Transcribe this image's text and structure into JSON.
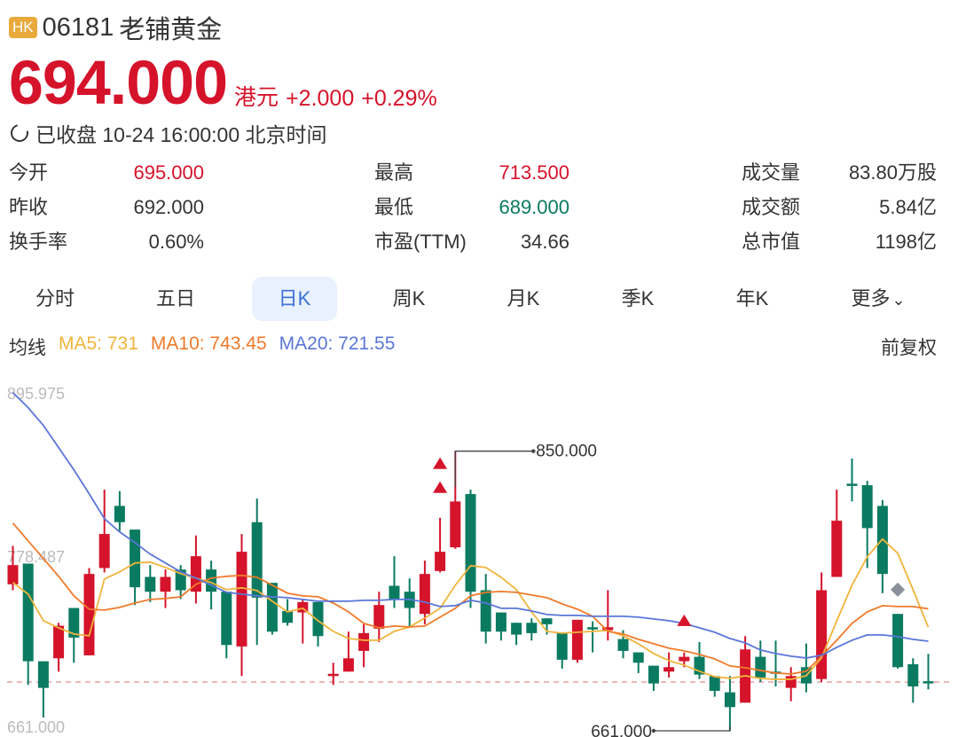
{
  "header": {
    "market_badge": "HK",
    "code": "06181",
    "name": "老铺黄金",
    "price": "694.000",
    "currency": "港元",
    "change": "+2.000",
    "change_pct": "+0.29%",
    "status": "已收盘 10-24 16:00:00 北京时间"
  },
  "stats": [
    {
      "label": "今开",
      "value": "695.000",
      "tone": "up"
    },
    {
      "label": "昨收",
      "value": "692.000",
      "tone": "neutral"
    },
    {
      "label": "换手率",
      "value": "0.60%",
      "tone": "neutral"
    },
    {
      "label": "最高",
      "value": "713.500",
      "tone": "up"
    },
    {
      "label": "最低",
      "value": "689.000",
      "tone": "down"
    },
    {
      "label": "市盈(TTM)",
      "value": "34.66",
      "tone": "neutral"
    },
    {
      "label": "成交量",
      "value": "83.80万股",
      "tone": "neutral"
    },
    {
      "label": "成交额",
      "value": "5.84亿",
      "tone": "neutral"
    },
    {
      "label": "总市值",
      "value": "1198亿",
      "tone": "neutral"
    }
  ],
  "tabs": [
    {
      "label": "分时"
    },
    {
      "label": "五日"
    },
    {
      "label": "日K",
      "active": true
    },
    {
      "label": "周K"
    },
    {
      "label": "月K"
    },
    {
      "label": "季K"
    },
    {
      "label": "年K"
    },
    {
      "label": "更多"
    }
  ],
  "ma": {
    "label": "均线",
    "ma5": "MA5: 731",
    "ma10": "MA10: 743.45",
    "ma20": "MA20: 721.55",
    "adjust": "前复权"
  },
  "colors": {
    "up": "#d5132b",
    "down": "#0a7b61",
    "ma5": "#f0b43c",
    "ma10": "#f07a2a",
    "ma20": "#5b76d9",
    "ref_line": "#e8a0a0",
    "marker_diamond": "#8a8f9a"
  },
  "chart_data": {
    "type": "candlestick",
    "ylim": [
      661.0,
      895.975
    ],
    "y_tick_labels": [
      "895.975",
      "778.487",
      "661.000"
    ],
    "reference_price": 694.0,
    "annotations": [
      {
        "candle": 30,
        "price": 850.0,
        "label": "850.000"
      },
      {
        "candle": 48,
        "price": 661.0,
        "label": "661.000"
      }
    ],
    "markers": [
      {
        "candle": 29,
        "price": 841.6,
        "shape": "triangle-up"
      },
      {
        "candle": 29,
        "price": 825.4,
        "shape": "triangle-up"
      },
      {
        "candle": 45,
        "price": 735.4,
        "shape": "triangle-up"
      },
      {
        "candle": 59,
        "price": 756.4,
        "shape": "diamond"
      }
    ],
    "candles": [
      [
        760,
        786,
        756,
        773
      ],
      [
        774,
        774,
        692,
        708
      ],
      [
        708,
        708,
        670,
        690
      ],
      [
        710,
        734,
        701,
        732
      ],
      [
        744,
        744,
        707,
        724
      ],
      [
        712,
        771,
        712,
        767
      ],
      [
        771,
        824,
        768,
        794
      ],
      [
        813,
        823,
        796,
        802
      ],
      [
        797,
        797,
        746,
        758
      ],
      [
        765,
        773,
        748,
        755
      ],
      [
        755,
        770,
        744,
        765
      ],
      [
        770,
        773,
        750,
        756
      ],
      [
        755,
        793,
        747,
        779
      ],
      [
        770,
        776,
        743,
        755
      ],
      [
        755,
        755,
        710,
        719
      ],
      [
        718,
        794,
        698,
        782
      ],
      [
        802,
        818,
        719,
        751
      ],
      [
        761,
        761,
        726,
        728
      ],
      [
        742,
        750,
        732,
        734
      ],
      [
        741,
        750,
        720,
        748
      ],
      [
        748,
        748,
        718,
        725
      ],
      [
        699,
        707,
        692,
        699.5
      ],
      [
        701,
        728,
        701,
        710
      ],
      [
        715,
        733,
        704,
        727
      ],
      [
        730,
        755,
        721,
        746
      ],
      [
        759,
        779,
        744,
        750
      ],
      [
        755,
        764,
        731,
        744
      ],
      [
        740,
        776,
        733,
        767
      ],
      [
        769,
        805,
        768,
        782
      ],
      [
        785,
        850,
        784,
        816
      ],
      [
        821,
        824,
        744,
        755
      ],
      [
        756,
        767,
        720,
        728
      ],
      [
        741,
        741,
        722,
        728
      ],
      [
        734,
        734,
        719,
        726
      ],
      [
        734,
        737,
        722,
        727
      ],
      [
        737,
        737,
        726,
        733
      ],
      [
        727,
        727,
        703,
        709
      ],
      [
        709,
        736,
        707,
        736
      ],
      [
        731,
        735,
        714,
        730.5
      ],
      [
        729,
        756,
        722,
        731
      ],
      [
        723,
        729,
        710,
        715
      ],
      [
        714,
        714,
        700,
        707
      ],
      [
        705,
        705,
        688,
        693
      ],
      [
        701,
        714,
        697,
        704
      ],
      [
        708,
        714,
        704,
        711
      ],
      [
        711,
        721,
        696,
        699
      ],
      [
        698,
        698,
        684,
        688
      ],
      [
        687,
        698,
        661,
        677
      ],
      [
        680,
        725,
        680,
        716
      ],
      [
        711,
        722,
        694,
        697
      ],
      [
        701,
        722,
        691,
        700.5
      ],
      [
        690,
        704,
        681,
        698
      ],
      [
        704,
        720,
        687,
        693
      ],
      [
        696,
        768,
        694,
        756
      ],
      [
        765,
        824,
        765,
        803
      ],
      [
        828,
        845,
        816,
        827.5
      ],
      [
        827,
        830,
        771,
        798
      ],
      [
        813,
        817,
        754,
        767
      ],
      [
        740,
        740,
        703,
        704
      ],
      [
        706,
        710,
        680,
        691
      ],
      [
        694.5,
        713,
        689,
        694
      ]
    ],
    "series": [
      {
        "name": "MA5",
        "values": [
          761.2,
          753.4,
          735.4,
          730.6,
          726.4,
          725.2,
          763.6,
          768.4,
          774.4,
          775,
          771.4,
          767.2,
          764.2,
          761.2,
          756.4,
          757.6,
          755.8,
          748.6,
          741.4,
          743.8,
          735.4,
          728.2,
          723.4,
          722.2,
          722.2,
          728.2,
          731.2,
          737.2,
          743.8,
          759.4,
          772.6,
          771.4,
          764.8,
          756.4,
          741.4,
          728.2,
          727,
          727.6,
          728.2,
          728.8,
          725.2,
          719.8,
          713.2,
          708.4,
          705.4,
          701.2,
          697.6,
          696.4,
          698.2,
          696.4,
          695.8,
          695.8,
          698.2,
          710.2,
          735.4,
          759.4,
          778.6,
          790.6,
          781,
          756.4,
          731
        ]
      },
      {
        "name": "MA10",
        "values": [
          801.4,
          789.4,
          777.4,
          765.4,
          752.2,
          743.2,
          742.6,
          744.4,
          747.4,
          749.8,
          750.4,
          751.6,
          760,
          764.2,
          765.4,
          766,
          764.8,
          759.4,
          754,
          752.2,
          751.6,
          747.4,
          741.4,
          733.6,
          730.6,
          731.8,
          731.2,
          731.8,
          737.8,
          743.8,
          752.2,
          754.6,
          755.2,
          754.6,
          752.8,
          751,
          746.8,
          743.2,
          738.4,
          728.2,
          726.4,
          722.8,
          719.8,
          716.8,
          715,
          712.6,
          709.6,
          704.8,
          703.6,
          701.8,
          700,
          699.4,
          701.2,
          711.4,
          722.2,
          733.6,
          741.4,
          745.6,
          745,
          745,
          743.45
        ]
      },
      {
        "name": "MA20",
        "values": [
          889.6,
          879.4,
          867.4,
          852.4,
          837.4,
          821.2,
          804.4,
          795.4,
          788.2,
          780.4,
          774.4,
          768.4,
          764.2,
          759.4,
          754.6,
          753.4,
          752.2,
          751.6,
          751,
          749.8,
          748.6,
          748.6,
          748.6,
          749.2,
          749.2,
          749.8,
          749.8,
          748,
          745,
          745.6,
          749.2,
          747.4,
          743.8,
          743.8,
          742,
          739.6,
          739,
          739,
          738.4,
          738.4,
          738.4,
          737.8,
          736.6,
          735.4,
          733.6,
          730.6,
          727.6,
          723.4,
          720.4,
          715.6,
          713.2,
          711.4,
          710.2,
          712,
          717.4,
          722.2,
          725.8,
          725.8,
          724.6,
          722.8,
          721.55
        ]
      }
    ]
  }
}
